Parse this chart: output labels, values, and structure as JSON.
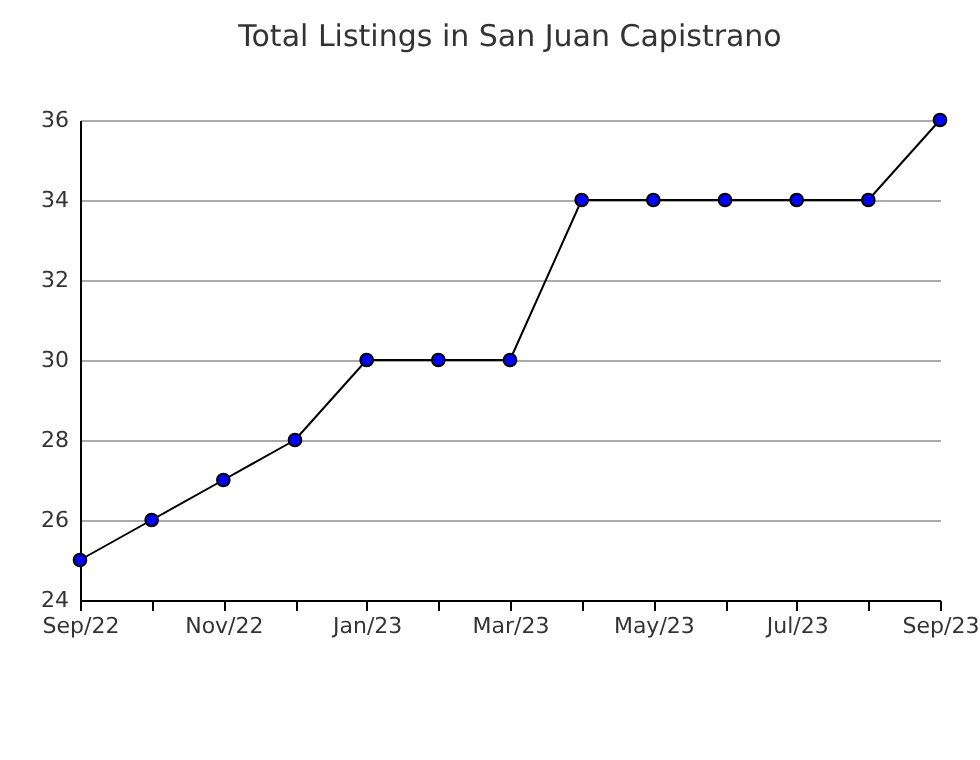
{
  "chart_data": {
    "type": "line",
    "title": "Total Listings in San Juan Capistrano",
    "categories": [
      "Sep/22",
      null,
      "Nov/22",
      null,
      "Jan/23",
      null,
      "Mar/23",
      null,
      "May/23",
      null,
      "Jul/23",
      null,
      "Sep/23"
    ],
    "series": [
      {
        "color": "#0000ff",
        "values": [
          25,
          26,
          27,
          28,
          30,
          30,
          30,
          34,
          34,
          34,
          34,
          34,
          36
        ]
      }
    ],
    "ylim": [
      24,
      36
    ],
    "yticks": [
      24,
      26,
      28,
      30,
      32,
      34,
      36
    ],
    "grid": "y",
    "marker": "circle",
    "line_style": "solid",
    "legend": false
  }
}
